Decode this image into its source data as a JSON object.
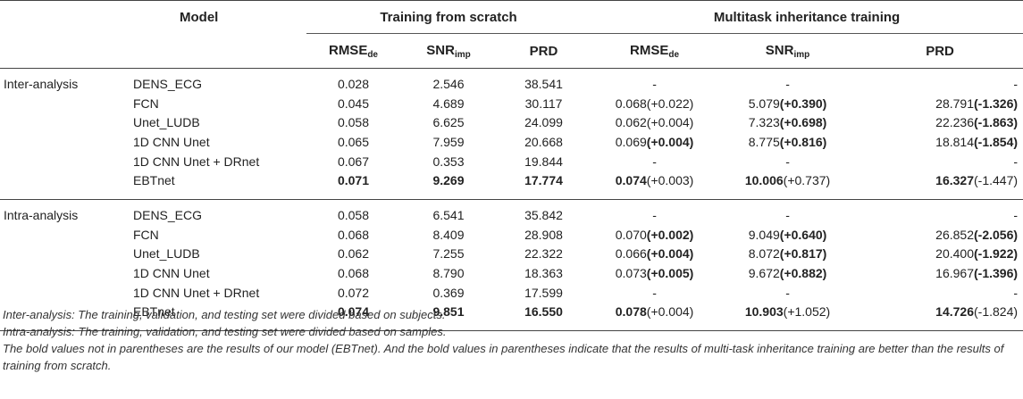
{
  "header": {
    "model": "Model",
    "group_scratch": "Training from scratch",
    "group_mti": "Multitask inheritance training",
    "cols": [
      {
        "base": "RMSE",
        "sub": "de"
      },
      {
        "base": "SNR",
        "sub": "imp"
      },
      {
        "base": "PRD",
        "sub": ""
      },
      {
        "base": "RMSE",
        "sub": "de"
      },
      {
        "base": "SNR",
        "sub": "imp"
      },
      {
        "base": "PRD",
        "sub": ""
      }
    ]
  },
  "inter": {
    "label": "Inter-analysis",
    "rows": [
      {
        "model": "DENS_ECG",
        "rmse": "0.028",
        "snr": "2.546",
        "prd": "38.541",
        "m_rmse": "-",
        "m_rmse_d": "",
        "m_snr": "-",
        "m_snr_d": "",
        "m_prd": "-",
        "m_prd_d": ""
      },
      {
        "model": "FCN",
        "rmse": "0.045",
        "snr": "4.689",
        "prd": "30.117",
        "m_rmse": "0.068",
        "m_rmse_d": "(+0.022)",
        "m_snr": "5.079",
        "m_snr_d": "(+0.390)",
        "m_prd": "28.791",
        "m_prd_d": "(-1.326)"
      },
      {
        "model": "Unet_LUDB",
        "rmse": "0.058",
        "snr": "6.625",
        "prd": "24.099",
        "m_rmse": "0.062",
        "m_rmse_d": "(+0.004)",
        "m_snr": "7.323",
        "m_snr_d": "(+0.698)",
        "m_prd": "22.236",
        "m_prd_d": "(-1.863)"
      },
      {
        "model": "1D CNN Unet",
        "rmse": "0.065",
        "snr": "7.959",
        "prd": "20.668",
        "m_rmse": "0.069",
        "m_rmse_d": "(+0.004)",
        "m_snr": "8.775",
        "m_snr_d": "(+0.816)",
        "m_prd": "18.814",
        "m_prd_d": "(-1.854)"
      },
      {
        "model": "1D CNN Unet + DRnet",
        "rmse": "0.067",
        "snr": "0.353",
        "prd": "19.844",
        "m_rmse": "-",
        "m_rmse_d": "",
        "m_snr": "-",
        "m_snr_d": "",
        "m_prd": "-",
        "m_prd_d": ""
      },
      {
        "model": "EBTnet",
        "rmse": "0.071",
        "snr": "9.269",
        "prd": "17.774",
        "m_rmse": "0.074",
        "m_rmse_d": "(+0.003)",
        "m_snr": "10.006",
        "m_snr_d": "(+0.737)",
        "m_prd": "16.327",
        "m_prd_d": "(-1.447)"
      }
    ]
  },
  "intra": {
    "label": "Intra-analysis",
    "rows": [
      {
        "model": "DENS_ECG",
        "rmse": "0.058",
        "snr": "6.541",
        "prd": "35.842",
        "m_rmse": "-",
        "m_rmse_d": "",
        "m_snr": "-",
        "m_snr_d": "",
        "m_prd": "-",
        "m_prd_d": ""
      },
      {
        "model": "FCN",
        "rmse": "0.068",
        "snr": "8.409",
        "prd": "28.908",
        "m_rmse": "0.070",
        "m_rmse_d": "(+0.002)",
        "m_snr": "9.049",
        "m_snr_d": "(+0.640)",
        "m_prd": "26.852",
        "m_prd_d": "(-2.056)"
      },
      {
        "model": "Unet_LUDB",
        "rmse": "0.062",
        "snr": "7.255",
        "prd": "22.322",
        "m_rmse": "0.066",
        "m_rmse_d": "(+0.004)",
        "m_snr": "8.072",
        "m_snr_d": "(+0.817)",
        "m_prd": "20.400",
        "m_prd_d": "(-1.922)"
      },
      {
        "model": "1D CNN Unet",
        "rmse": "0.068",
        "snr": "8.790",
        "prd": "18.363",
        "m_rmse": "0.073",
        "m_rmse_d": "(+0.005)",
        "m_snr": "9.672",
        "m_snr_d": "(+0.882)",
        "m_prd": "16.967",
        "m_prd_d": "(-1.396)"
      },
      {
        "model": "1D CNN Unet + DRnet",
        "rmse": "0.072",
        "snr": "0.369",
        "prd": "17.599",
        "m_rmse": "-",
        "m_rmse_d": "",
        "m_snr": "-",
        "m_snr_d": "",
        "m_prd": "-",
        "m_prd_d": ""
      },
      {
        "model": "EBTnet",
        "rmse": "0.074",
        "snr": "9.851",
        "prd": "16.550",
        "m_rmse": "0.078",
        "m_rmse_d": "(+0.004)",
        "m_snr": "10.903",
        "m_snr_d": "(+1.052)",
        "m_prd": "14.726",
        "m_prd_d": "(-1.824)"
      }
    ]
  },
  "notes": [
    "Inter-analysis: The training, validation, and testing set were divided based on subjects.",
    "Intra-analysis: The training, validation, and testing set were divided based on samples.",
    "The bold values not in parentheses are the results of our model (EBTnet). And the bold values in parentheses indicate that the results of multi-task inheritance training are better than the results of training from scratch."
  ]
}
